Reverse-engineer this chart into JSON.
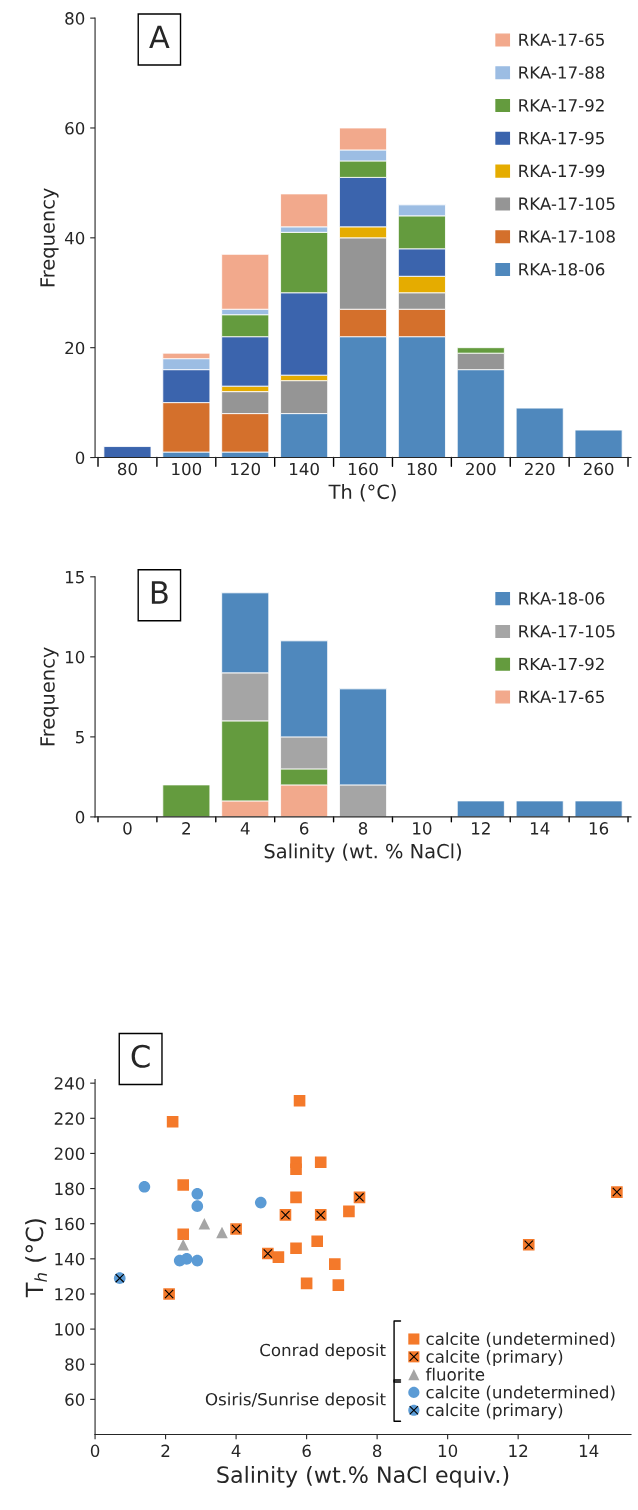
{
  "chart_data": [
    {
      "type": "bar",
      "title": "A",
      "stacked": true,
      "xlabel": "Th (°C)",
      "ylabel": "Frequency",
      "legend": "top right",
      "grid": false,
      "categories": [
        "80",
        "100",
        "120",
        "140",
        "160",
        "180",
        "200",
        "220",
        "260"
      ],
      "ylim": [
        0,
        80
      ],
      "yticks": [
        0,
        20,
        40,
        60,
        80
      ],
      "series": [
        {
          "name": "RKA-18-06",
          "color": "#4f88bd",
          "values": [
            null,
            1,
            1,
            8,
            22,
            22,
            16,
            9,
            5
          ]
        },
        {
          "name": "RKA-17-108",
          "color": "#d4702c",
          "values": [
            null,
            9,
            7,
            null,
            5,
            5,
            null,
            null,
            null
          ]
        },
        {
          "name": "RKA-17-105",
          "color": "#959595",
          "values": [
            null,
            null,
            4,
            6,
            13,
            3,
            3,
            null,
            null
          ]
        },
        {
          "name": "RKA-17-99",
          "color": "#e5ac00",
          "values": [
            null,
            null,
            1,
            1,
            2,
            3,
            null,
            null,
            null
          ]
        },
        {
          "name": "RKA-17-95",
          "color": "#3b64ad",
          "values": [
            2,
            6,
            9,
            15,
            9,
            5,
            null,
            null,
            null
          ]
        },
        {
          "name": "RKA-17-92",
          "color": "#649b3e",
          "values": [
            null,
            null,
            4,
            11,
            3,
            6,
            1,
            null,
            null
          ]
        },
        {
          "name": "RKA-17-88",
          "color": "#9cbde3",
          "values": [
            null,
            2,
            1,
            1,
            2,
            2,
            null,
            null,
            null
          ]
        },
        {
          "name": "RKA-17-65",
          "color": "#f2a98c",
          "values": [
            null,
            1,
            10,
            6,
            4,
            null,
            null,
            null,
            null
          ]
        }
      ]
    },
    {
      "type": "bar",
      "title": "B",
      "stacked": true,
      "xlabel": "Salinity (wt. % NaCl)",
      "ylabel": "Frequency",
      "legend": "top right",
      "grid": false,
      "categories": [
        "0",
        "2",
        "4",
        "6",
        "8",
        "10",
        "12",
        "14",
        "16"
      ],
      "ylim": [
        0,
        15
      ],
      "yticks": [
        0,
        5,
        10,
        15
      ],
      "series": [
        {
          "name": "RKA-17-65",
          "color": "#f2a98c",
          "values": [
            null,
            null,
            1,
            2,
            null,
            null,
            null,
            null,
            null
          ]
        },
        {
          "name": "RKA-17-92",
          "color": "#649b3e",
          "values": [
            null,
            2,
            5,
            1,
            null,
            null,
            null,
            null,
            null
          ]
        },
        {
          "name": "RKA-17-105",
          "color": "#a5a5a5",
          "values": [
            null,
            null,
            3,
            2,
            2,
            null,
            null,
            null,
            null
          ]
        },
        {
          "name": "RKA-18-06",
          "color": "#4f88bd",
          "values": [
            null,
            null,
            5,
            6,
            6,
            null,
            1,
            1,
            1
          ]
        }
      ]
    },
    {
      "type": "scatter",
      "title": "C",
      "xlabel": "Salinity (wt.% NaCl equiv.)",
      "ylabel": "T$_{h}$ (°C)",
      "legend": "bottom right",
      "grid": false,
      "xlim": [
        0,
        15.2
      ],
      "xticks": [
        0,
        2,
        4,
        6,
        8,
        10,
        12,
        14
      ],
      "ylim": [
        40,
        242
      ],
      "yticks": [
        60,
        80,
        100,
        120,
        140,
        160,
        180,
        200,
        220,
        240
      ],
      "annotations": [
        "Conrad deposit",
        "Osiris/Sunrise deposit"
      ],
      "series": [
        {
          "name": "calcite (undetermined)",
          "color": "#f4792a",
          "marker": [
            "square"
          ],
          "x": [
            2.2,
            2.5,
            2.5,
            5.8,
            5.7,
            5.7,
            6.4,
            5.7,
            7.2,
            6.3,
            5.7,
            5.2,
            6.8,
            6.0,
            6.9
          ],
          "values": [
            218,
            182,
            154,
            230,
            195,
            191,
            195,
            175,
            167,
            150,
            146,
            141,
            137,
            126,
            125
          ]
        },
        {
          "name": "calcite (primary)",
          "color": "#f4792a",
          "marker": [
            "square",
            "cross"
          ],
          "x": [
            2.1,
            4.0,
            4.9,
            5.4,
            6.4,
            7.5,
            12.3,
            14.8
          ],
          "values": [
            120,
            157,
            143,
            165,
            165,
            175,
            148,
            178
          ]
        },
        {
          "name": "fluorite",
          "color": "#a5a5a5",
          "marker": [
            "triangle"
          ],
          "x": [
            2.5,
            3.1,
            3.6
          ],
          "values": [
            148,
            160,
            155
          ]
        },
        {
          "name": "calcite (undetermined)",
          "color": "#5b9bd5",
          "marker": [
            "circle"
          ],
          "x": [
            1.4,
            2.9,
            2.9,
            4.7,
            2.4,
            2.6,
            2.9
          ],
          "values": [
            181,
            177,
            170,
            172,
            139,
            140,
            139
          ]
        },
        {
          "name": "calcite (primary)",
          "color": "#5b9bd5",
          "marker": [
            "circle",
            "cross"
          ],
          "x": [
            0.7
          ],
          "values": [
            129
          ]
        }
      ]
    }
  ]
}
